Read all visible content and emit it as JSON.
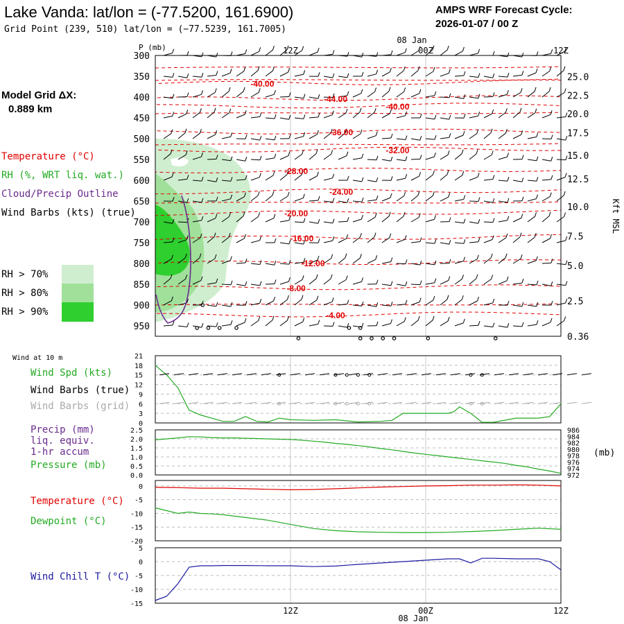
{
  "header": {
    "title": "Lake Vanda:  lat/lon = (-77.5200, 161.6900)",
    "subtitle": "Grid Point (239, 510) lat/lon = (−77.5239, 161.7005)",
    "cycle_title": "AMPS WRF Forecast Cycle:",
    "cycle_value": "2026-01-07 / 00  Z"
  },
  "model_grid": {
    "label": "Model Grid ΔX:",
    "value": "0.889 km"
  },
  "time_axis": {
    "date_label": "08 Jan",
    "tick_labels": [
      "12Z",
      "00Z",
      "12Z"
    ],
    "tick_hours": [
      12,
      24,
      36
    ],
    "range_hours": [
      0,
      36
    ]
  },
  "colors": {
    "temperature": "#e00000",
    "rh": "#22aa22",
    "cloud": "#6a2a8c",
    "wind_chill": "#1a1aa0",
    "wind_grid": "#aaaaaa",
    "rh70": "#cfeecf",
    "rh80": "#a0e09a",
    "rh90": "#2fcf2f"
  },
  "legend_top": {
    "temperature": "Temperature (°C)",
    "rh": "RH (%, WRT liq. wat.)",
    "cloud": "Cloud/Precip Outline",
    "wind": "Wind Barbs (kts) (true)",
    "rh70": "RH > 70%",
    "rh80": "RH > 80%",
    "rh90": "RH > 90%"
  },
  "chart_data": [
    {
      "type": "line",
      "panel": "vertical cross-section",
      "ylabel_left": "P (mb)",
      "ylabel_right": "Kft MSL",
      "pressure_levels": [
        300,
        350,
        400,
        450,
        500,
        550,
        600,
        650,
        700,
        750,
        800,
        850,
        900,
        950
      ],
      "ylim_mb": [
        975,
        300
      ],
      "kft_labels": [
        "25.0",
        "22.5",
        "20.0",
        "17.5",
        "15.0",
        "12.5",
        "10.0",
        "7.5",
        "5.0",
        "2.5",
        "0.36"
      ],
      "kft_levels_mb": [
        351,
        396,
        440,
        486,
        540,
        597,
        663,
        734,
        805,
        890,
        975
      ],
      "temperature_contours": [
        {
          "label": "-40.00",
          "hour": 9.5,
          "mb": 368
        },
        {
          "label": "-44.00",
          "hour": 16,
          "mb": 405
        },
        {
          "label": "-40.00",
          "hour": 21.5,
          "mb": 423
        },
        {
          "label": "-36.00",
          "hour": 16.5,
          "mb": 485
        },
        {
          "label": "-32.00",
          "hour": 21.5,
          "mb": 528
        },
        {
          "label": "-28.00",
          "hour": 12.5,
          "mb": 578
        },
        {
          "label": "-24.00",
          "hour": 16.5,
          "mb": 628
        },
        {
          "label": "-20.00",
          "hour": 12.5,
          "mb": 680
        },
        {
          "label": "-16.00",
          "hour": 13,
          "mb": 740
        },
        {
          "label": "-12.00",
          "hour": 14,
          "mb": 800
        },
        {
          "label": "-8.00",
          "hour": 12.5,
          "mb": 860
        },
        {
          "label": "-4.00",
          "hour": 16,
          "mb": 925
        }
      ]
    },
    {
      "type": "line",
      "panel": "surface wind",
      "title": "Wind at 10 m",
      "series": [
        {
          "name": "Wind Spd (kts)",
          "x": [
            0,
            1,
            2,
            3,
            4,
            5,
            6,
            7,
            8,
            9,
            10,
            11,
            12,
            14,
            16,
            18,
            20,
            21,
            22,
            24,
            25,
            26,
            26.5,
            27,
            28,
            29,
            30,
            32,
            34,
            35,
            36
          ],
          "values": [
            18,
            15,
            11,
            4,
            2.5,
            1.5,
            0.5,
            0.5,
            2,
            0.5,
            0.3,
            1.5,
            1,
            0.8,
            1,
            0.3,
            0.5,
            0.8,
            3,
            3,
            3,
            3,
            3.5,
            5,
            3,
            0.2,
            0.2,
            1.5,
            1.5,
            2,
            6
          ]
        }
      ],
      "labels": {
        "barbs_true": "Wind Barbs (true)",
        "barbs_grid": "Wind Barbs (grid)"
      },
      "yticks": [
        0,
        3,
        6,
        9,
        12,
        15,
        18,
        21
      ],
      "ylim": [
        0,
        21
      ]
    },
    {
      "type": "line",
      "panel": "precip and pressure",
      "series": [
        {
          "name": "Pressure (mb)",
          "x": [
            0,
            1,
            2,
            3,
            4,
            5,
            6,
            7,
            8,
            9,
            10,
            11,
            12,
            13,
            14,
            15,
            16,
            17,
            18,
            19,
            20,
            21,
            22,
            23,
            24,
            25,
            26,
            27,
            28,
            29,
            30,
            31,
            32,
            33,
            34,
            35,
            36
          ],
          "values": [
            982.9,
            983.2,
            983.5,
            983.9,
            983.8,
            983.6,
            983.5,
            983.5,
            983.4,
            983.3,
            983.2,
            983.1,
            983.0,
            982.8,
            982.5,
            982.2,
            981.8,
            981.5,
            981.1,
            980.7,
            980.2,
            979.8,
            979.3,
            978.8,
            978.4,
            978.0,
            977.6,
            977.2,
            976.8,
            976.4,
            976.0,
            975.6,
            975.0,
            974.5,
            973.8,
            973.2,
            972.5
          ]
        }
      ],
      "labels": {
        "precip": "Precip (mm)",
        "precip_line2": "liq. equiv.",
        "precip_line3": "1-hr accum",
        "pressure": "Pressure (mb)",
        "right_unit": "(mb)"
      },
      "yticks_left": [
        "0.0",
        "0.5",
        "1.0",
        "1.5",
        "2.0",
        "2.5"
      ],
      "yticks_right": [
        "972",
        "974",
        "976",
        "978",
        "980",
        "982",
        "984",
        "986"
      ],
      "ylim_left": [
        0,
        2.5
      ],
      "ylim_right": [
        972,
        986
      ]
    },
    {
      "type": "line",
      "panel": "temperature and dewpoint",
      "series": [
        {
          "name": "Temperature (°C)",
          "x": [
            0,
            2,
            4,
            6,
            8,
            10,
            12,
            14,
            16,
            18,
            20,
            22,
            24,
            26,
            28,
            30,
            32,
            34,
            36
          ],
          "values": [
            -0.5,
            -0.6,
            -0.8,
            -0.8,
            -1.0,
            -1.2,
            -1.4,
            -1.3,
            -1.0,
            -0.7,
            -0.4,
            -0.2,
            0.0,
            0.1,
            0.3,
            0.3,
            0.4,
            0.3,
            0.0
          ]
        },
        {
          "name": "Dewpoint (°C)",
          "x": [
            0,
            1,
            2,
            3,
            4,
            5,
            6,
            8,
            10,
            12,
            14,
            16,
            18,
            20,
            22,
            24,
            26,
            28,
            30,
            32,
            34,
            36
          ],
          "values": [
            -8,
            -9,
            -10,
            -9.5,
            -10,
            -10.2,
            -10.5,
            -11.5,
            -12.5,
            -14,
            -15.5,
            -16.3,
            -16.7,
            -16.9,
            -17,
            -17,
            -16.9,
            -16.6,
            -16.3,
            -15.8,
            -15.4,
            -15.8
          ]
        }
      ],
      "yticks": [
        0,
        -5,
        -10,
        -15,
        -20
      ],
      "ylim": [
        -20,
        2
      ]
    },
    {
      "type": "line",
      "panel": "wind chill",
      "series": [
        {
          "name": "Wind Chill T (°C)",
          "x": [
            0,
            1,
            2,
            3,
            4,
            5,
            6,
            8,
            10,
            12,
            14,
            16,
            18,
            20,
            22,
            24,
            26,
            27,
            28,
            29,
            30,
            32,
            34,
            35,
            36
          ],
          "values": [
            -14,
            -12.5,
            -8,
            -2,
            -1.5,
            -1.5,
            -1.4,
            -1.4,
            -1.5,
            -1.5,
            -1.8,
            -1.6,
            -1.0,
            -0.5,
            0,
            0.5,
            1,
            1,
            -0.5,
            1.2,
            1.2,
            1,
            1,
            0,
            -3
          ]
        }
      ],
      "yticks": [
        5,
        0,
        -5,
        -10,
        -15
      ],
      "ylim": [
        -15,
        5
      ]
    }
  ],
  "panel_labels": {
    "wind10m": "Wind at 10 m",
    "wind_spd": "Wind Spd (kts)",
    "wind_true": "Wind Barbs (true)",
    "wind_grid": "Wind Barbs (grid)",
    "temp": "Temperature (°C)",
    "dew": "Dewpoint (°C)",
    "chill": "Wind Chill T (°C)"
  }
}
